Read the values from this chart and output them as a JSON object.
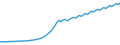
{
  "values": [
    5.5,
    5.6,
    5.7,
    5.6,
    5.8,
    5.9,
    6.0,
    5.9,
    6.1,
    6.2,
    6.3,
    6.5,
    6.4,
    6.6,
    6.8,
    7.0,
    7.3,
    7.6,
    8.0,
    8.5,
    9.2,
    10.0,
    11.2,
    12.8,
    14.5,
    16.5,
    19.0,
    22.0,
    25.5,
    27.5,
    26.0,
    27.8,
    28.5,
    27.0,
    28.2,
    29.5,
    30.5,
    29.8,
    31.0,
    32.5,
    31.5,
    33.0,
    34.5,
    33.5,
    35.0,
    36.8,
    36.0,
    37.5,
    38.5,
    37.8,
    39.0,
    40.5,
    39.5,
    41.0,
    42.5,
    41.5,
    43.0,
    44.5,
    43.5,
    45.0
  ],
  "line_color": "#3a9fd5",
  "background_color": "#ffffff",
  "linewidth": 1.0
}
